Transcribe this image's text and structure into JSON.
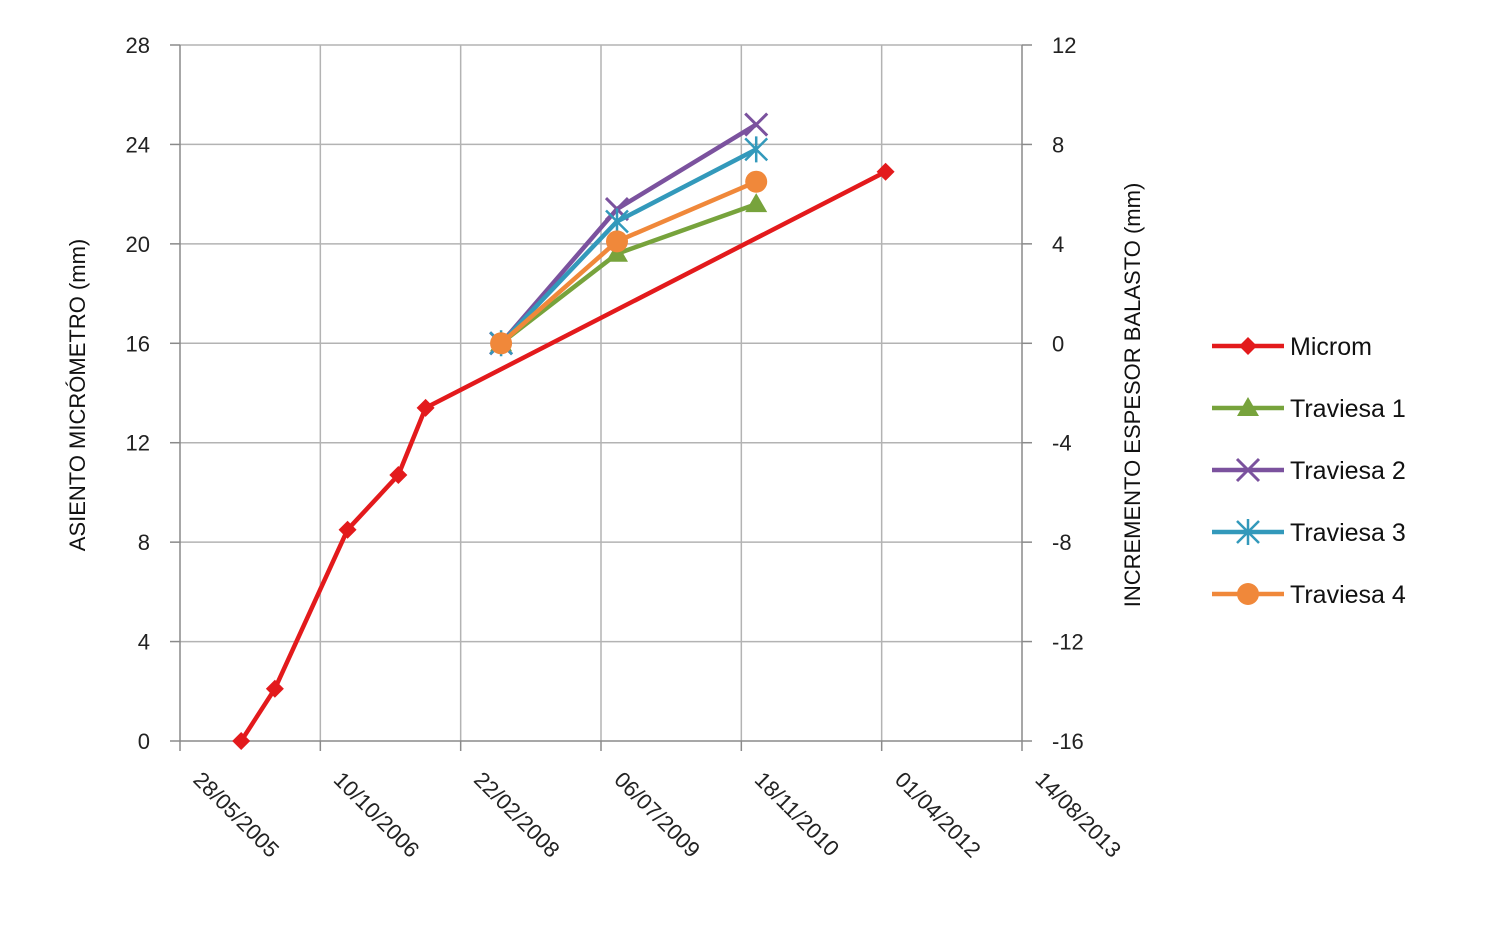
{
  "chart_data": {
    "type": "line",
    "x_axis": {
      "ticks": [
        "28/05/2005",
        "10/10/2006",
        "22/02/2008",
        "06/07/2009",
        "18/11/2010",
        "01/04/2012",
        "14/08/2013"
      ],
      "label": ""
    },
    "y_left": {
      "label": "ASIENTO MICRÓMETRO  (mm)",
      "range": [
        0,
        28
      ],
      "ticks": [
        "0",
        "4",
        "8",
        "12",
        "16",
        "20",
        "24",
        "28"
      ]
    },
    "y_right": {
      "label": "INCREMENTO ESPESOR BALASTO (mm)",
      "range": [
        -16,
        12
      ],
      "ticks": [
        "-16",
        "-12",
        "-8",
        "-4",
        "0",
        "4",
        "8",
        "12"
      ]
    },
    "grid": true,
    "legend_position": "right",
    "series": [
      {
        "name": "Microm",
        "axis": "left",
        "color": "#e31a1c",
        "marker": "diamond",
        "points": [
          [
            "2006-01-01",
            0
          ],
          [
            "2006-05-01",
            2.1
          ],
          [
            "2007-01-15",
            8.5
          ],
          [
            "2007-07-15",
            10.7
          ],
          [
            "2007-10-20",
            13.4
          ],
          [
            "2012-04-15",
            22.9
          ]
        ]
      },
      {
        "name": "Traviesa 1",
        "axis": "right",
        "color": "#77a33c",
        "marker": "triangle",
        "points": [
          [
            "2008-07-15",
            0
          ],
          [
            "2009-09-01",
            3.6
          ],
          [
            "2011-01-10",
            5.6
          ]
        ]
      },
      {
        "name": "Traviesa 2",
        "axis": "right",
        "color": "#7b529e",
        "marker": "x",
        "points": [
          [
            "2008-07-15",
            0
          ],
          [
            "2009-09-01",
            5.4
          ],
          [
            "2011-01-10",
            8.8
          ]
        ]
      },
      {
        "name": "Traviesa 3",
        "axis": "right",
        "color": "#3399bb",
        "marker": "star",
        "points": [
          [
            "2008-07-15",
            0
          ],
          [
            "2009-09-01",
            4.9
          ],
          [
            "2011-01-10",
            7.8
          ]
        ]
      },
      {
        "name": "Traviesa 4",
        "axis": "right",
        "color": "#f0883a",
        "marker": "circle",
        "points": [
          [
            "2008-07-15",
            0
          ],
          [
            "2009-09-01",
            4.1
          ],
          [
            "2011-01-10",
            6.5
          ]
        ]
      }
    ]
  }
}
